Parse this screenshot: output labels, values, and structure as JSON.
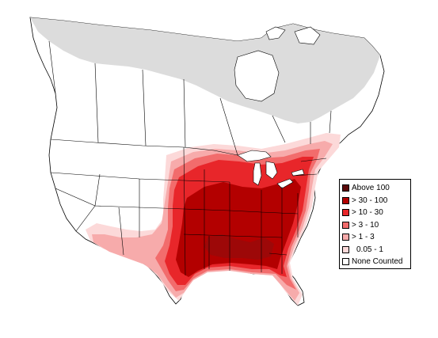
{
  "legend": {
    "items": [
      {
        "label": "Above 100",
        "color": "#5c0a0a"
      },
      {
        "label": "> 30 - 100",
        "color": "#b30000"
      },
      {
        "label": "> 10 - 30",
        "color": "#e8262a"
      },
      {
        "label": "> 3 - 10",
        "color": "#f26c6c"
      },
      {
        "label": "> 1 - 3",
        "color": "#f7abab"
      },
      {
        "label": "0.05 - 1",
        "color": "#fcd9d9"
      },
      {
        "label": "None Counted",
        "color": "#ffffff"
      }
    ]
  },
  "map": {
    "no_data_color": "#dcdcdc",
    "land_color": "#ffffff",
    "border_color": "#000000"
  }
}
